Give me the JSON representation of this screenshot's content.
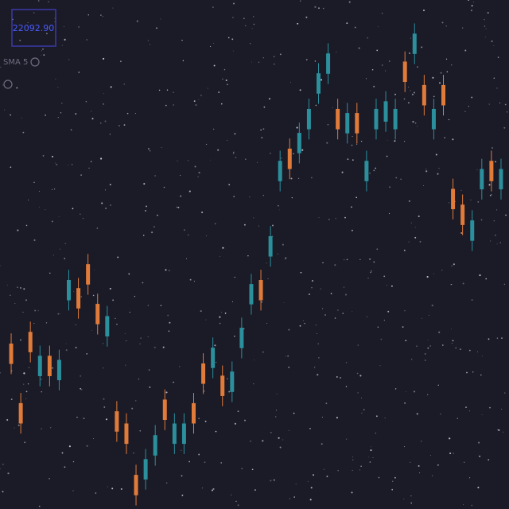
{
  "chart_data": {
    "type": "candlestick",
    "price_label": "22092.90",
    "indicator_label": "SMA 5",
    "up_color": "#2b8f9c",
    "down_color": "#e07b3a",
    "ylim": [
      0,
      100
    ],
    "open": [
      32.5,
      20.8,
      34.8,
      26.1,
      30.1,
      25.3,
      41,
      43.4,
      48.1,
      40.3,
      33.9,
      19.2,
      16.8,
      6.7,
      5.8,
      10.5,
      21.5,
      12.8,
      12.8,
      20.8,
      28.6,
      27.7,
      26.2,
      23,
      31.6,
      40.2,
      45,
      49.6,
      64.4,
      70.8,
      69.9,
      74.6,
      81.6,
      85.5,
      78.6,
      73.8,
      77.8,
      64.4,
      74.6,
      76.1,
      74.6,
      87.9,
      89.4,
      83.3,
      74.6,
      83.3,
      62.9,
      59.8,
      52.7,
      62.8,
      68.4,
      62.8
    ],
    "high": [
      34.5,
      22.8,
      36.8,
      32.1,
      32.1,
      31.3,
      47,
      45.4,
      50.1,
      42.3,
      39.9,
      21.2,
      18.8,
      8.7,
      11.8,
      16.5,
      23.5,
      18.8,
      18.8,
      22.8,
      30.6,
      33.7,
      28.2,
      29,
      37.6,
      46.2,
      47,
      55.6,
      70.4,
      72.8,
      75.9,
      80.6,
      87.6,
      91.5,
      80.6,
      79.8,
      79.8,
      70.4,
      80.6,
      82.1,
      80.6,
      89.9,
      95.4,
      85.3,
      80.6,
      85.3,
      64.9,
      61.8,
      58.7,
      68.8,
      70.4,
      68.8
    ],
    "low": [
      26.5,
      14.8,
      28.8,
      24.1,
      24.1,
      23.3,
      39,
      37.4,
      42.1,
      34.3,
      31.9,
      13.2,
      10.8,
      0.7,
      3.8,
      8.5,
      15.5,
      10.8,
      10.8,
      14.8,
      22.6,
      25.7,
      20.2,
      21,
      29.6,
      38.2,
      39,
      47.6,
      62.4,
      64.8,
      67.9,
      72.6,
      79.6,
      83.5,
      72.6,
      71.8,
      71.8,
      62.4,
      72.6,
      74.1,
      72.6,
      81.9,
      87.4,
      77.3,
      72.6,
      77.3,
      56.9,
      53.8,
      50.7,
      60.8,
      62.4,
      60.8
    ],
    "close": [
      28.5,
      16.8,
      30.8,
      30.1,
      26.1,
      29.3,
      45,
      39.4,
      44.1,
      36.3,
      37.9,
      15.2,
      12.8,
      2.7,
      9.8,
      14.5,
      17.5,
      16.8,
      16.8,
      16.8,
      24.6,
      31.7,
      22.2,
      27,
      35.6,
      44.2,
      41,
      53.6,
      68.4,
      66.8,
      73.9,
      78.6,
      85.6,
      89.5,
      74.6,
      77.8,
      73.8,
      68.4,
      78.6,
      80.1,
      78.6,
      83.9,
      93.4,
      79.3,
      78.6,
      79.3,
      58.9,
      55.8,
      56.7,
      66.8,
      64.4,
      66.8
    ]
  }
}
